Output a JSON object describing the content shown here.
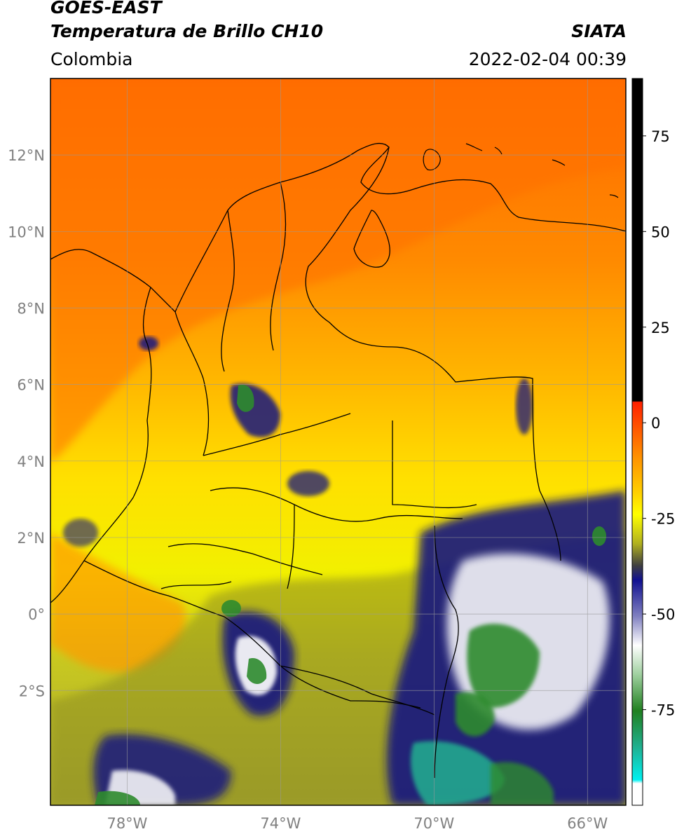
{
  "header": {
    "satellite": "GOES-EAST",
    "product": "Temperatura de Brillo CH10",
    "region": "Colombia",
    "source": "SIATA",
    "timestamp": "2022-02-04 00:39"
  },
  "map": {
    "lon_range": [
      -80,
      -65
    ],
    "lat_range": [
      -5,
      14
    ],
    "lon_ticks": [
      "78°W",
      "74°W",
      "70°W",
      "66°W"
    ],
    "lat_ticks": [
      "12°N",
      "10°N",
      "8°N",
      "6°N",
      "4°N",
      "2°N",
      "0°",
      "2°S"
    ],
    "grid": true
  },
  "colorbar": {
    "tick_labels": [
      "75",
      "50",
      "25",
      "0",
      "-25",
      "-50",
      "-75"
    ],
    "range": [
      -100,
      90
    ],
    "colors": {
      "black": "#000000",
      "red": "#ff1a00",
      "orange": "#ff8000",
      "yellow": "#ffff00",
      "olive": "#9a9a1a",
      "navy": "#0a0a80",
      "white": "#ffffff",
      "green": "#2e8b2e",
      "cyan": "#00e0e0"
    }
  }
}
